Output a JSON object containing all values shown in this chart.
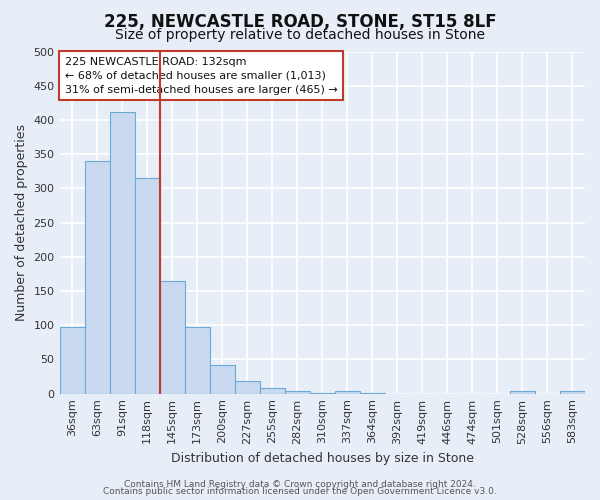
{
  "title": "225, NEWCASTLE ROAD, STONE, ST15 8LF",
  "subtitle": "Size of property relative to detached houses in Stone",
  "xlabel": "Distribution of detached houses by size in Stone",
  "ylabel": "Number of detached properties",
  "categories": [
    "36sqm",
    "63sqm",
    "91sqm",
    "118sqm",
    "145sqm",
    "173sqm",
    "200sqm",
    "227sqm",
    "255sqm",
    "282sqm",
    "310sqm",
    "337sqm",
    "364sqm",
    "392sqm",
    "419sqm",
    "446sqm",
    "474sqm",
    "501sqm",
    "528sqm",
    "556sqm",
    "583sqm"
  ],
  "values": [
    97,
    340,
    412,
    315,
    165,
    97,
    42,
    18,
    8,
    4,
    1,
    4,
    1,
    0,
    0,
    0,
    0,
    0,
    4,
    0,
    4
  ],
  "bar_color": "#c8d9f0",
  "bar_edge_color": "#6aaad4",
  "bg_color": "#e8eef8",
  "plot_bg_color": "#e8eef8",
  "grid_color": "#ffffff",
  "vline_x": 3.5,
  "vline_color": "#c0392b",
  "annotation_line1": "225 NEWCASTLE ROAD: 132sqm",
  "annotation_line2": "← 68% of detached houses are smaller (1,013)",
  "annotation_line3": "31% of semi-detached houses are larger (465) →",
  "annotation_box_color": "#ffffff",
  "annotation_box_edge": "#c0392b",
  "ylim": [
    0,
    500
  ],
  "yticks": [
    0,
    50,
    100,
    150,
    200,
    250,
    300,
    350,
    400,
    450,
    500
  ],
  "footer1": "Contains HM Land Registry data © Crown copyright and database right 2024.",
  "footer2": "Contains public sector information licensed under the Open Government Licence v3.0.",
  "title_fontsize": 12,
  "subtitle_fontsize": 10,
  "axis_label_fontsize": 9,
  "tick_fontsize": 8,
  "annotation_fontsize": 8,
  "footer_fontsize": 6.5
}
